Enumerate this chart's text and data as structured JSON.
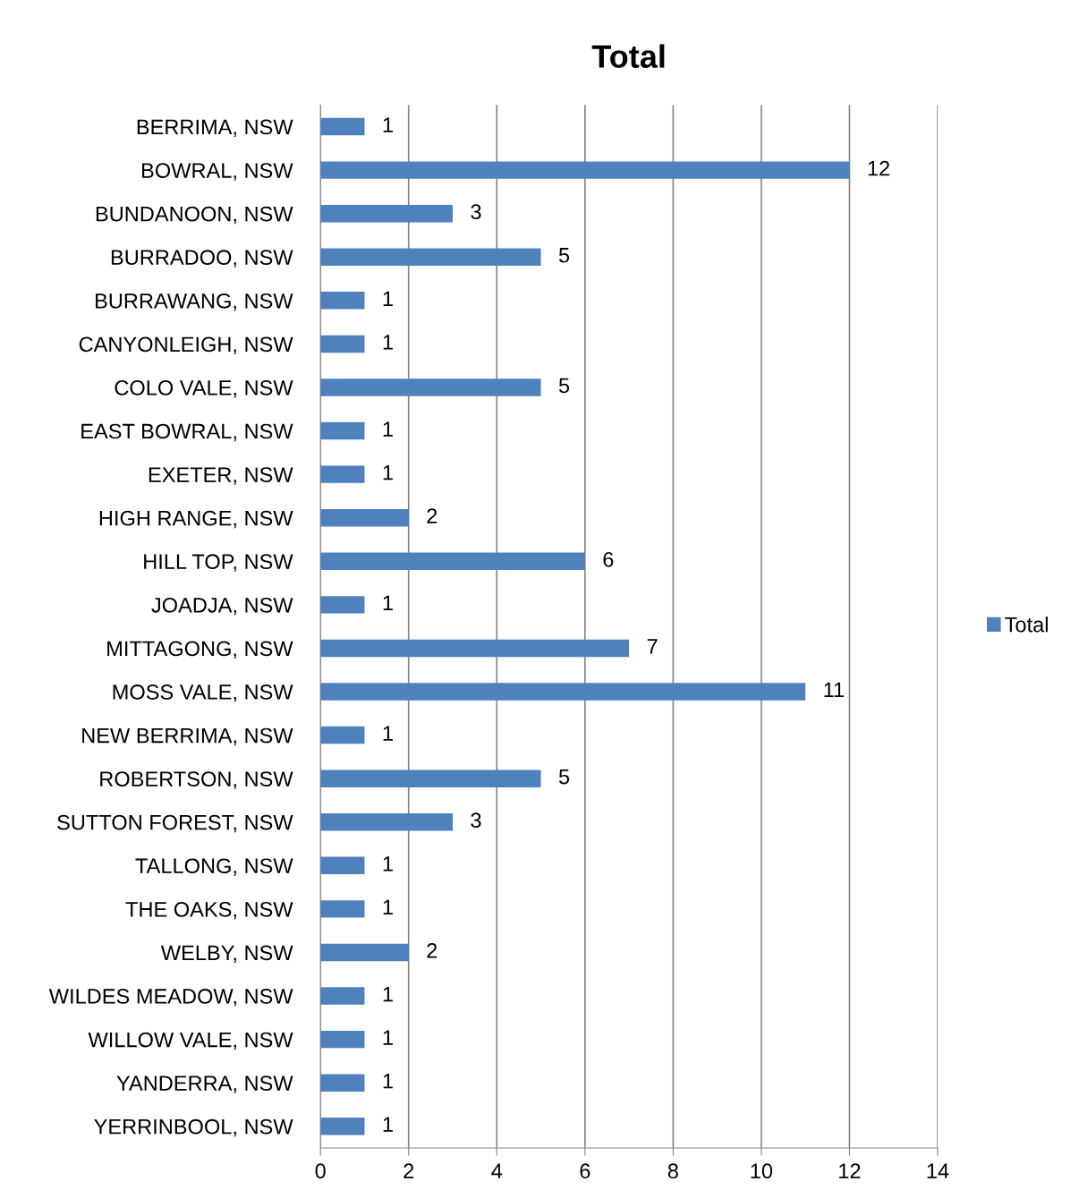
{
  "chart_data": {
    "type": "bar",
    "title": "Total",
    "orientation": "horizontal",
    "categories": [
      "BERRIMA, NSW",
      "BOWRAL, NSW",
      "BUNDANOON, NSW",
      "BURRADOO, NSW",
      "BURRAWANG, NSW",
      "CANYONLEIGH, NSW",
      "COLO VALE, NSW",
      "EAST BOWRAL, NSW",
      "EXETER, NSW",
      "HIGH RANGE, NSW",
      "HILL TOP, NSW",
      "JOADJA, NSW",
      "MITTAGONG, NSW",
      "MOSS VALE, NSW",
      "NEW BERRIMA, NSW",
      "ROBERTSON, NSW",
      "SUTTON FOREST, NSW",
      "TALLONG, NSW",
      "THE OAKS, NSW",
      "WELBY, NSW",
      "WILDES MEADOW, NSW",
      "WILLOW VALE, NSW",
      "YANDERRA, NSW",
      "YERRINBOOL, NSW"
    ],
    "series": [
      {
        "name": "Total",
        "color": "#4f81bd",
        "values": [
          1,
          12,
          3,
          5,
          1,
          1,
          5,
          1,
          1,
          2,
          6,
          1,
          7,
          11,
          1,
          5,
          3,
          1,
          1,
          2,
          1,
          1,
          1,
          1
        ]
      }
    ],
    "xlim": [
      0,
      14
    ],
    "xticks": [
      0,
      2,
      4,
      6,
      8,
      10,
      12,
      14
    ],
    "grid": "x",
    "legend": "right",
    "data_labels": true
  }
}
